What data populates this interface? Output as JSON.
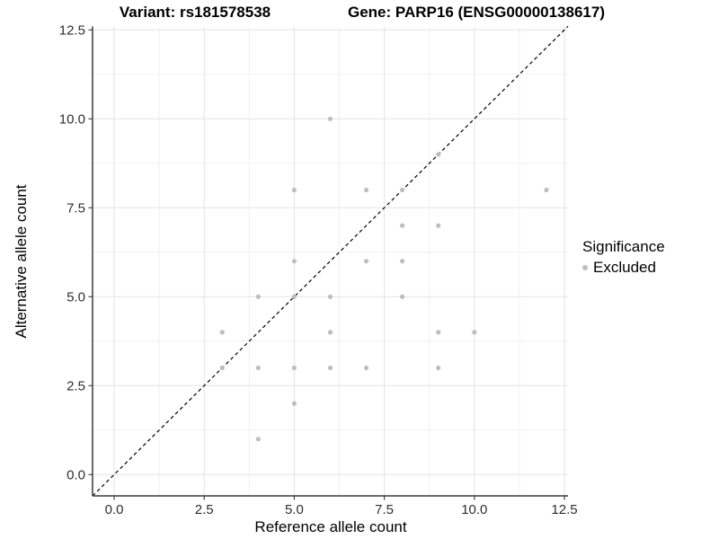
{
  "chart_data": {
    "type": "scatter",
    "title_left": "Variant: rs181578538",
    "title_right": "Gene: PARP16 (ENSG00000138617)",
    "xlabel": "Reference allele count",
    "ylabel": "Alternative allele count",
    "x_ticks": [
      0.0,
      2.5,
      5.0,
      7.5,
      10.0,
      12.5
    ],
    "y_ticks": [
      0.0,
      2.5,
      5.0,
      7.5,
      10.0,
      12.5
    ],
    "x_tick_labels": [
      "0.0",
      "2.5",
      "5.0",
      "7.5",
      "10.0",
      "12.5"
    ],
    "y_tick_labels": [
      "0.0",
      "2.5",
      "5.0",
      "7.5",
      "10.0",
      "12.5"
    ],
    "minor_gridlines": [
      1.25,
      3.75,
      6.25,
      8.75,
      11.25
    ],
    "xlim": [
      -0.6,
      12.6
    ],
    "ylim": [
      -0.6,
      12.6
    ],
    "grid": "on",
    "identity_line": {
      "equation": "y = x",
      "style": "dashed",
      "color": "#000000"
    },
    "series": [
      {
        "name": "Excluded",
        "color": "#bebebe",
        "points": [
          [
            3,
            3
          ],
          [
            3,
            4
          ],
          [
            4,
            1
          ],
          [
            4,
            3
          ],
          [
            4,
            5
          ],
          [
            5,
            2
          ],
          [
            5,
            3
          ],
          [
            5,
            5
          ],
          [
            5,
            6
          ],
          [
            5,
            8
          ],
          [
            6,
            3
          ],
          [
            6,
            4
          ],
          [
            6,
            5
          ],
          [
            6,
            10
          ],
          [
            7,
            3
          ],
          [
            7,
            6
          ],
          [
            7,
            8
          ],
          [
            8,
            5
          ],
          [
            8,
            6
          ],
          [
            8,
            7
          ],
          [
            8,
            8
          ],
          [
            9,
            3
          ],
          [
            9,
            4
          ],
          [
            9,
            7
          ],
          [
            9,
            9
          ],
          [
            10,
            4
          ],
          [
            12,
            8
          ]
        ]
      }
    ],
    "legend": {
      "title": "Significance",
      "position": "right",
      "items": [
        {
          "label": "Excluded",
          "color": "#bebebe"
        }
      ]
    },
    "colors": {
      "point": "#bebebe",
      "grid_major": "#e3e3e3",
      "grid_minor": "#f1f1f1",
      "axis_line": "#3a3a3a",
      "tick_text": "#2e2e2e"
    }
  }
}
